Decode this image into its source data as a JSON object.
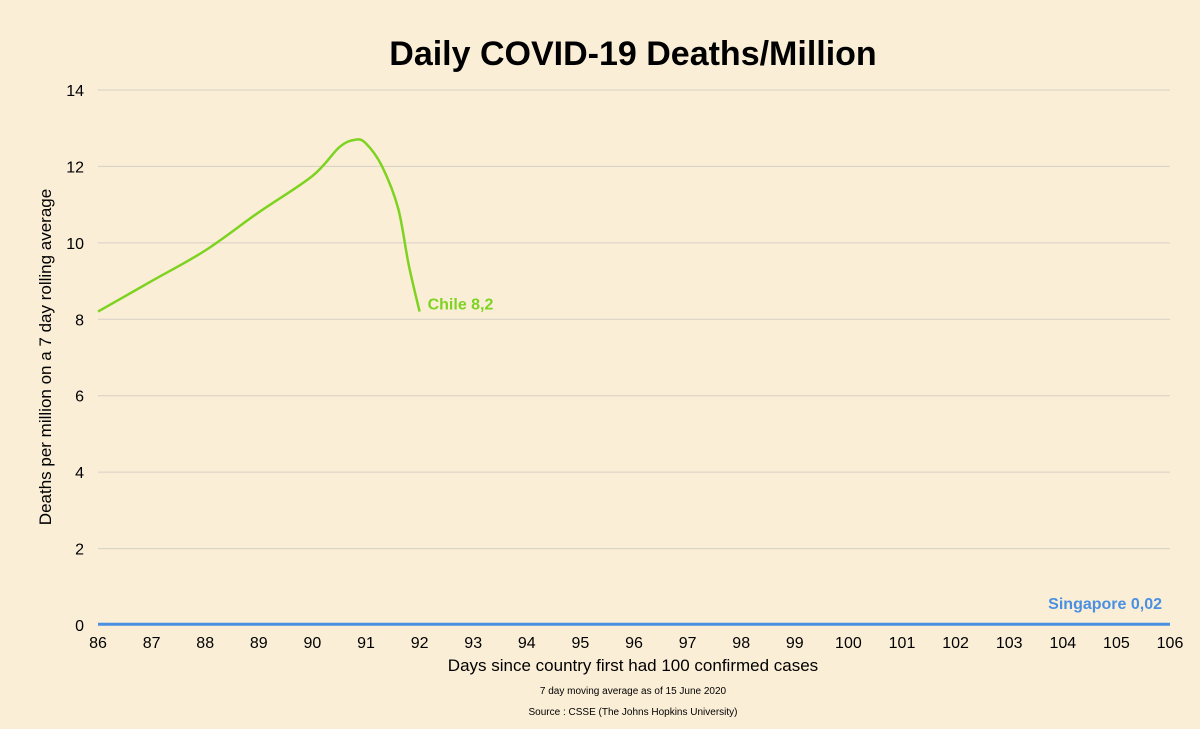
{
  "chart_data": {
    "type": "line",
    "title": "Daily COVID-19 Deaths/Million",
    "xlabel": "Days since country first had 100 confirmed cases",
    "ylabel": "Deaths per million on a 7 day rolling average",
    "subtitle_note": "7 day moving average as of 15 June 2020",
    "source_note": "Source : CSSE (The Johns Hopkins University)",
    "xlim": [
      86,
      106
    ],
    "ylim": [
      0,
      14
    ],
    "x_ticks": [
      86,
      87,
      88,
      89,
      90,
      91,
      92,
      93,
      94,
      95,
      96,
      97,
      98,
      99,
      100,
      101,
      102,
      103,
      104,
      105,
      106
    ],
    "y_ticks": [
      0,
      2,
      4,
      6,
      8,
      10,
      12,
      14
    ],
    "grid": true,
    "series": [
      {
        "name": "Chile",
        "label": "Chile 8,2",
        "color": "#7ed321",
        "x": [
          86,
          87,
          88,
          89,
          90,
          90.5,
          90.8,
          91,
          91.3,
          91.6,
          91.8,
          92
        ],
        "y": [
          8.2,
          9.0,
          9.8,
          10.8,
          11.75,
          12.5,
          12.7,
          12.6,
          12.0,
          10.9,
          9.4,
          8.2
        ]
      },
      {
        "name": "Singapore",
        "label": "Singapore  0,02",
        "color": "#4a90e2",
        "x": [
          86,
          106
        ],
        "y": [
          0.02,
          0.02
        ]
      }
    ]
  }
}
